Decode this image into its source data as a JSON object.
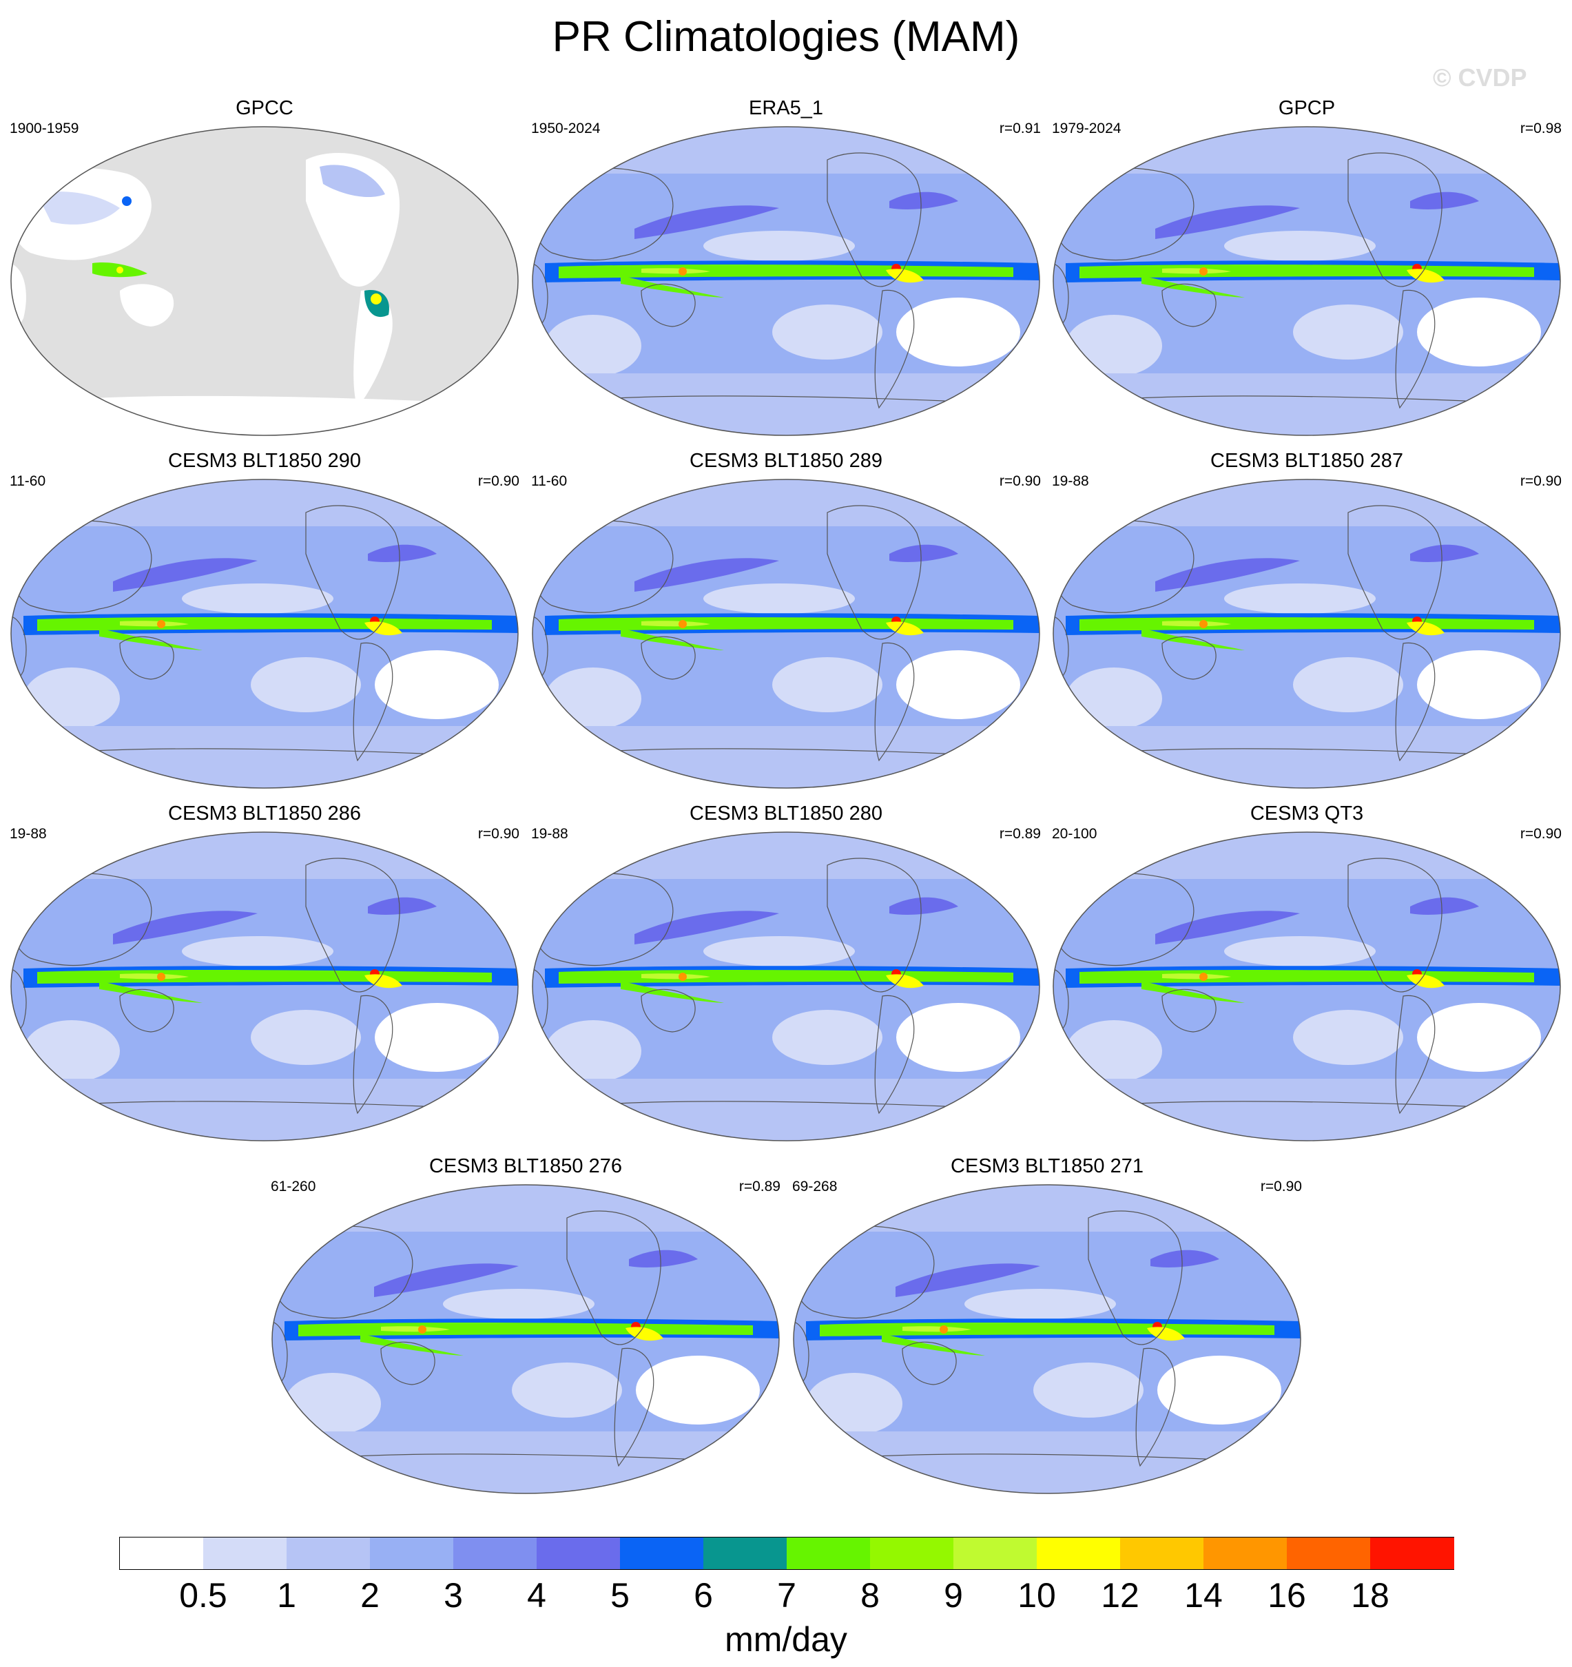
{
  "title": "PR Climatologies (MAM)",
  "watermark": "© CVDP",
  "colorbar": {
    "colors": [
      "#ffffff",
      "#d4dcf8",
      "#b6c4f5",
      "#98b0f4",
      "#7f8ff0",
      "#6a6cec",
      "#0a64f5",
      "#08968f",
      "#66f400",
      "#94f800",
      "#c0fa30",
      "#ffff00",
      "#ffc800",
      "#ff9600",
      "#ff6400",
      "#ff1400"
    ],
    "ticks": [
      "0.5",
      "1",
      "2",
      "3",
      "4",
      "5",
      "6",
      "7",
      "8",
      "9",
      "10",
      "12",
      "14",
      "16",
      "18"
    ],
    "unit": "mm/day"
  },
  "panels": [
    {
      "title": "GPCC",
      "period": "1900-1959",
      "corr": "",
      "land_only": true
    },
    {
      "title": "ERA5_1",
      "period": "1950-2024",
      "corr": "r=0.91",
      "land_only": false
    },
    {
      "title": "GPCP",
      "period": "1979-2024",
      "corr": "r=0.98",
      "land_only": false
    },
    {
      "title": "CESM3 BLT1850 290",
      "period": "11-60",
      "corr": "r=0.90",
      "land_only": false
    },
    {
      "title": "CESM3 BLT1850 289",
      "period": "11-60",
      "corr": "r=0.90",
      "land_only": false
    },
    {
      "title": "CESM3 BLT1850 287",
      "period": "19-88",
      "corr": "r=0.90",
      "land_only": false
    },
    {
      "title": "CESM3 BLT1850 286",
      "period": "19-88",
      "corr": "r=0.90",
      "land_only": false
    },
    {
      "title": "CESM3 BLT1850 280",
      "period": "19-88",
      "corr": "r=0.89",
      "land_only": false
    },
    {
      "title": "CESM3 QT3",
      "period": "20-100",
      "corr": "r=0.90",
      "land_only": false
    },
    {
      "title": "CESM3 BLT1850 276",
      "period": "61-260",
      "corr": "r=0.89",
      "land_only": false
    },
    {
      "title": "CESM3 BLT1850 271",
      "period": "69-268",
      "corr": "r=0.90",
      "land_only": false
    }
  ]
}
